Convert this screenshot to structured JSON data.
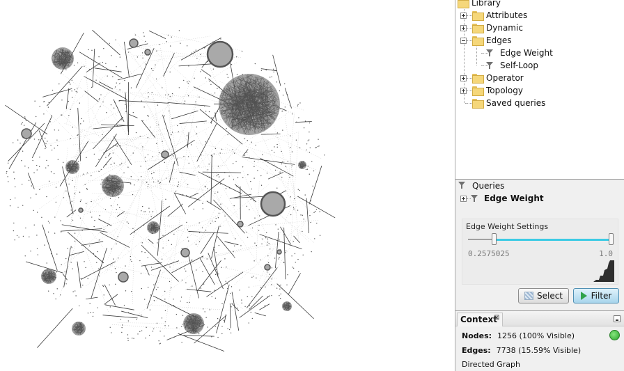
{
  "library": {
    "root_label": "Library",
    "items": [
      {
        "label": "Attributes",
        "expanded": false
      },
      {
        "label": "Dynamic",
        "expanded": false
      },
      {
        "label": "Edges",
        "expanded": true,
        "children": [
          "Edge Weight",
          "Self-Loop"
        ]
      },
      {
        "label": "Operator",
        "expanded": false
      },
      {
        "label": "Topology",
        "expanded": false
      },
      {
        "label": "Saved queries",
        "expanded": false
      }
    ]
  },
  "queries": {
    "header": "Queries",
    "active_query": "Edge Weight",
    "settings_title": "Edge Weight Settings",
    "range_low": "0.2575025",
    "range_high": "1.0",
    "range_low_fraction": 0.1786,
    "range_high_fraction": 1.0,
    "range_color": "#3ccbe4",
    "select_label": "Select",
    "filter_label": "Filter"
  },
  "context": {
    "tab_label": "Context",
    "close_glyph": "⊠",
    "nodes_label": "Nodes:",
    "nodes_value": "1256 (100% Visible)",
    "edges_label": "Edges:",
    "edges_value": "7738 (15.59% Visible)",
    "graph_type": "Directed Graph",
    "status_color": "#29a52c"
  }
}
